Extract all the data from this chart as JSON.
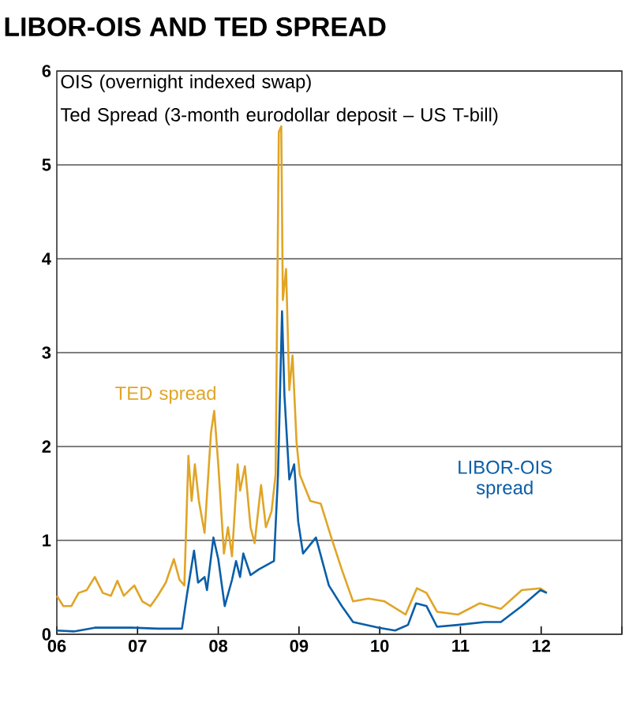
{
  "chart_data": {
    "type": "line",
    "title": "LIBOR-OIS AND TED SPREAD",
    "annotations": [
      "OIS (overnight indexed swap)",
      "Ted Spread (3-month eurodollar deposit – US T-bill)"
    ],
    "xlim": [
      2006,
      2013
    ],
    "xticks": [
      {
        "value": 2006,
        "label": "06"
      },
      {
        "value": 2007,
        "label": "07"
      },
      {
        "value": 2008,
        "label": "08"
      },
      {
        "value": 2009,
        "label": "09"
      },
      {
        "value": 2010,
        "label": "10"
      },
      {
        "value": 2011,
        "label": "11"
      },
      {
        "value": 2012,
        "label": "12"
      },
      {
        "value": 2013,
        "label": null
      }
    ],
    "ylim": [
      0,
      6
    ],
    "yticks": [
      0,
      1,
      2,
      3,
      4,
      5,
      6
    ],
    "grid": "y",
    "legend": false,
    "series": [
      {
        "name": "TED spread",
        "color": "#e0a526",
        "x": [
          2006.0,
          2006.08,
          2006.18,
          2006.27,
          2006.37,
          2006.47,
          2006.57,
          2006.67,
          2006.75,
          2006.83,
          2006.96,
          2007.06,
          2007.16,
          2007.25,
          2007.35,
          2007.45,
          2007.52,
          2007.58,
          2007.63,
          2007.67,
          2007.71,
          2007.76,
          2007.83,
          2007.91,
          2007.95,
          2008.0,
          2008.07,
          2008.12,
          2008.17,
          2008.24,
          2008.27,
          2008.33,
          2008.4,
          2008.45,
          2008.53,
          2008.59,
          2008.66,
          2008.71,
          2008.75,
          2008.78,
          2008.8,
          2008.84,
          2008.88,
          2008.92,
          2008.97,
          2009.01,
          2009.14,
          2009.27,
          2009.4,
          2009.53,
          2009.67,
          2009.86,
          2010.06,
          2010.32,
          2010.46,
          2010.58,
          2010.71,
          2010.97,
          2011.24,
          2011.5,
          2011.76,
          2011.99,
          2012.07
        ],
        "values": [
          0.41,
          0.3,
          0.3,
          0.44,
          0.47,
          0.61,
          0.44,
          0.41,
          0.57,
          0.41,
          0.52,
          0.35,
          0.3,
          0.41,
          0.55,
          0.8,
          0.58,
          0.52,
          1.9,
          1.42,
          1.81,
          1.42,
          1.08,
          2.15,
          2.38,
          1.81,
          0.86,
          1.14,
          0.83,
          1.81,
          1.53,
          1.79,
          1.14,
          0.97,
          1.59,
          1.14,
          1.31,
          1.7,
          5.35,
          5.41,
          3.56,
          3.89,
          2.6,
          2.97,
          2.04,
          1.7,
          1.42,
          1.39,
          1.03,
          0.69,
          0.35,
          0.38,
          0.35,
          0.21,
          0.49,
          0.44,
          0.24,
          0.21,
          0.33,
          0.27,
          0.47,
          0.49,
          0.44
        ]
      },
      {
        "name": "LIBOR-OIS spread",
        "color": "#0a5ea8",
        "x": [
          2006.0,
          2006.21,
          2006.47,
          2006.93,
          2007.25,
          2007.55,
          2007.61,
          2007.7,
          2007.75,
          2007.83,
          2007.86,
          2007.94,
          2008.0,
          2008.08,
          2008.17,
          2008.22,
          2008.27,
          2008.31,
          2008.4,
          2008.5,
          2008.69,
          2008.74,
          2008.79,
          2008.82,
          2008.88,
          2008.94,
          2008.99,
          2009.05,
          2009.21,
          2009.37,
          2009.53,
          2009.67,
          2009.99,
          2010.19,
          2010.35,
          2010.45,
          2010.58,
          2010.71,
          2010.97,
          2011.3,
          2011.5,
          2011.76,
          2011.99,
          2012.07
        ],
        "values": [
          0.04,
          0.03,
          0.07,
          0.07,
          0.06,
          0.06,
          0.41,
          0.89,
          0.55,
          0.61,
          0.47,
          1.03,
          0.8,
          0.3,
          0.58,
          0.78,
          0.61,
          0.86,
          0.63,
          0.69,
          0.78,
          1.7,
          3.44,
          2.54,
          1.65,
          1.81,
          1.2,
          0.86,
          1.03,
          0.52,
          0.3,
          0.13,
          0.07,
          0.04,
          0.1,
          0.33,
          0.3,
          0.08,
          0.1,
          0.13,
          0.13,
          0.3,
          0.47,
          0.44
        ]
      }
    ]
  }
}
